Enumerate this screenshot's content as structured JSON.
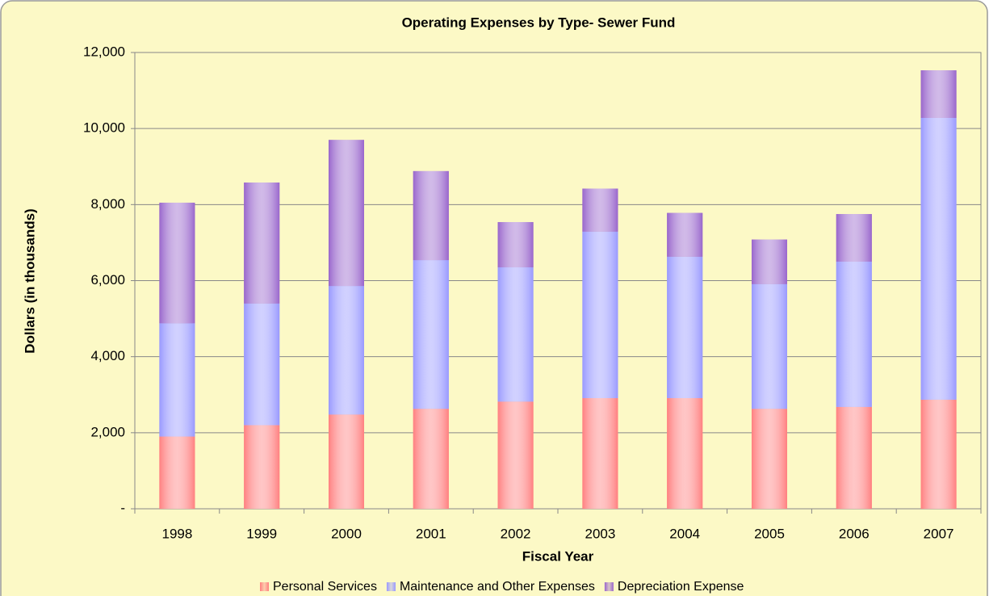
{
  "chart_data": {
    "type": "stacked_bar",
    "title": "Operating Expenses by Type- Sewer Fund",
    "x_label": "Fiscal Year",
    "y_label": "Dollars (in thousands)",
    "categories": [
      "1998",
      "1999",
      "2000",
      "2001",
      "2002",
      "2003",
      "2004",
      "2005",
      "2006",
      "2007"
    ],
    "series": [
      {
        "name": "Personal Services",
        "color": "#ff8080",
        "values": [
          1900,
          2200,
          2480,
          2630,
          2820,
          2910,
          2910,
          2630,
          2680,
          2870
        ]
      },
      {
        "name": "Maintenance and Other Expenses",
        "color": "#9999ff",
        "values": [
          2980,
          3200,
          3380,
          3910,
          3530,
          4380,
          3720,
          3280,
          3820,
          7410
        ]
      },
      {
        "name": "Depreciation Expense",
        "color": "#9966cc",
        "values": [
          3170,
          3180,
          3840,
          2340,
          1190,
          1130,
          1150,
          1170,
          1250,
          1250
        ]
      }
    ],
    "ylim": [
      0,
      12000
    ],
    "yticks": [
      {
        "value": 0,
        "label": "-"
      },
      {
        "value": 2000,
        "label": "2,000"
      },
      {
        "value": 4000,
        "label": "4,000"
      },
      {
        "value": 6000,
        "label": "6,000"
      },
      {
        "value": 8000,
        "label": "8,000"
      },
      {
        "value": 10000,
        "label": "10,000"
      },
      {
        "value": 12000,
        "label": "12,000"
      }
    ],
    "grid": true,
    "legend": "bottom"
  }
}
